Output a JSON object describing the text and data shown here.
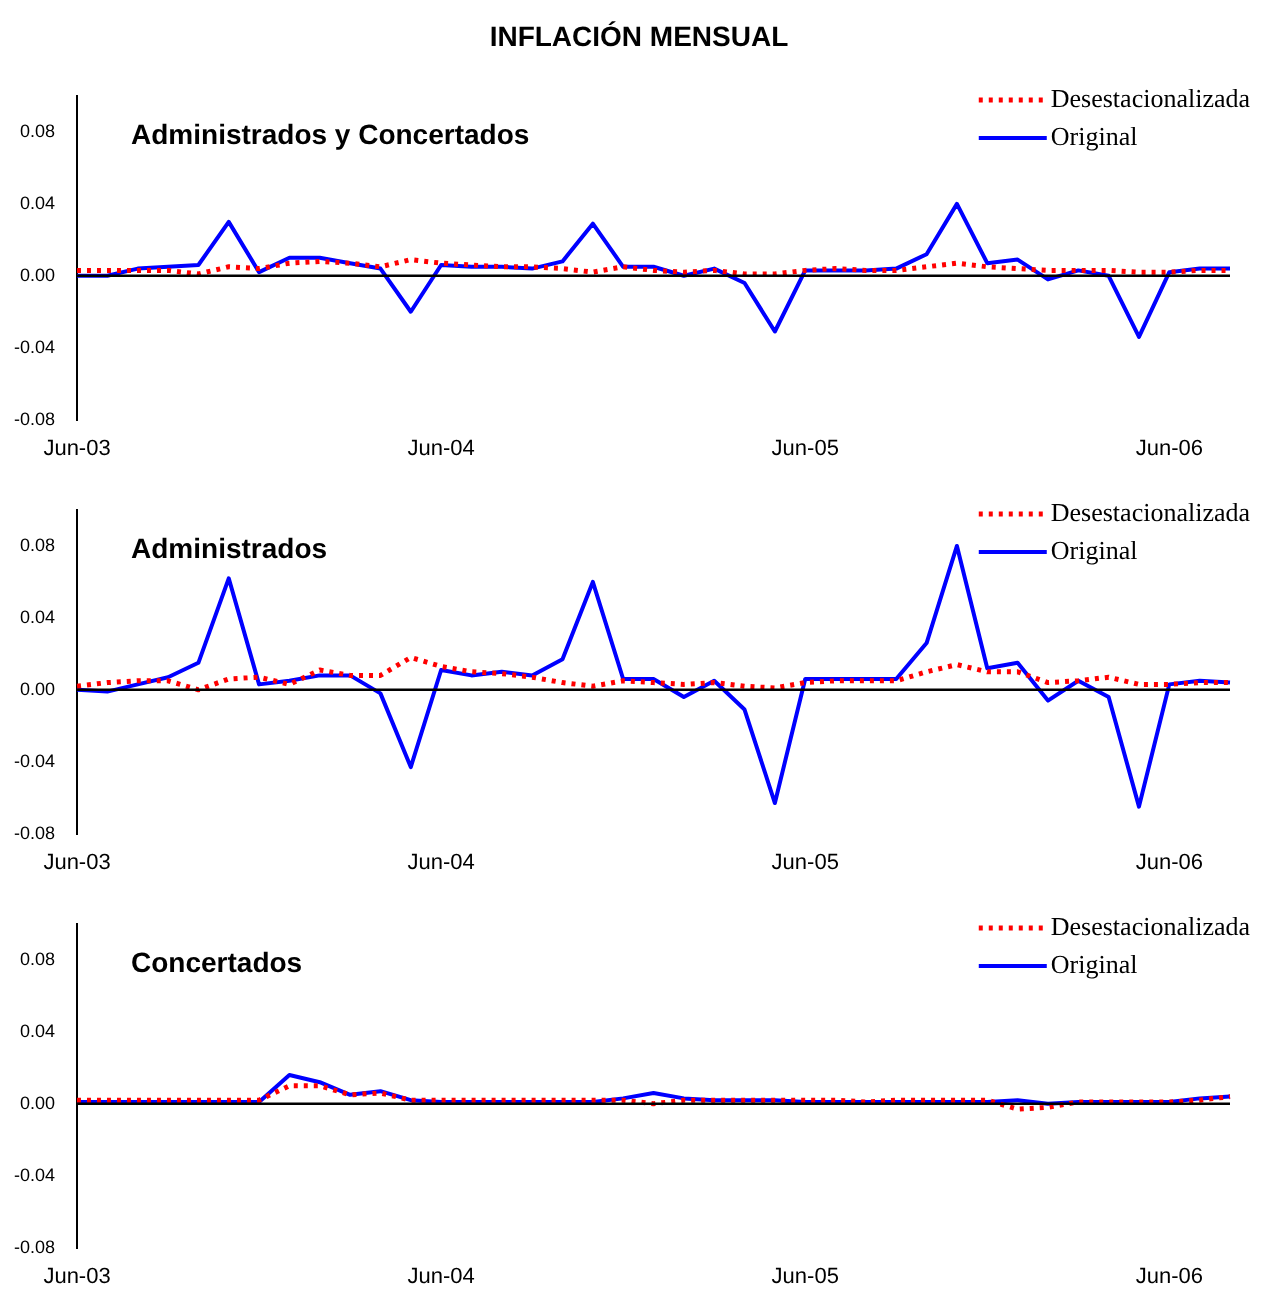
{
  "chart_data": [
    {
      "type": "line",
      "title": "Administrados y Concertados",
      "annotations": [
        "INFLACIÓN MENSUAL"
      ],
      "categories": [
        "Jun-03",
        null,
        null,
        null,
        null,
        null,
        null,
        null,
        null,
        null,
        null,
        null,
        "Jun-04",
        null,
        null,
        null,
        null,
        null,
        null,
        null,
        null,
        null,
        null,
        null,
        "Jun-05",
        null,
        null,
        null,
        null,
        null,
        null,
        null,
        null,
        null,
        null,
        null,
        "Jun-06",
        null,
        null
      ],
      "series": [
        {
          "name": "Desestacionalizada",
          "color": "#ff0000",
          "line_style": "dotted",
          "values": [
            0.003,
            0.003,
            0.003,
            0.003,
            0.001,
            0.005,
            0.004,
            0.007,
            0.008,
            0.007,
            0.005,
            0.009,
            0.007,
            0.006,
            0.005,
            0.005,
            0.004,
            0.002,
            0.005,
            0.003,
            0.002,
            0.003,
            0.001,
            0.001,
            0.003,
            0.004,
            0.003,
            0.003,
            0.005,
            0.007,
            0.005,
            0.004,
            0.003,
            0.003,
            0.003,
            0.002,
            0.002,
            0.003,
            0.003
          ]
        },
        {
          "name": "Original",
          "color": "#0000ff",
          "line_style": "solid",
          "values": [
            0.0,
            0.0,
            0.004,
            0.005,
            0.006,
            0.03,
            0.002,
            0.01,
            0.01,
            0.007,
            0.004,
            -0.02,
            0.006,
            0.005,
            0.005,
            0.004,
            0.008,
            0.029,
            0.005,
            0.005,
            0.0,
            0.004,
            -0.004,
            -0.031,
            0.003,
            0.003,
            0.003,
            0.004,
            0.012,
            0.04,
            0.007,
            0.009,
            -0.002,
            0.003,
            0.0,
            -0.034,
            0.002,
            0.004,
            0.004
          ]
        }
      ],
      "ylim": [
        -0.08,
        0.1
      ],
      "yticks": [
        {
          "value": -0.08,
          "label": "-0.08"
        },
        {
          "value": -0.04,
          "label": "-0.04"
        },
        {
          "value": 0,
          "label": "0.00"
        },
        {
          "value": 0.04,
          "label": "0.04"
        },
        {
          "value": 0.08,
          "label": "0.08"
        }
      ],
      "ref_lines": [
        {
          "axis": "y",
          "value": 0,
          "color": "#000000"
        }
      ],
      "grid": false,
      "legend": "top right",
      "marker": "none"
    },
    {
      "type": "line",
      "title": "Administrados",
      "categories": [
        "Jun-03",
        null,
        null,
        null,
        null,
        null,
        null,
        null,
        null,
        null,
        null,
        null,
        "Jun-04",
        null,
        null,
        null,
        null,
        null,
        null,
        null,
        null,
        null,
        null,
        null,
        "Jun-05",
        null,
        null,
        null,
        null,
        null,
        null,
        null,
        null,
        null,
        null,
        null,
        "Jun-06",
        null,
        null
      ],
      "series": [
        {
          "name": "Desestacionalizada",
          "color": "#ff0000",
          "line_style": "dotted",
          "values": [
            0.002,
            0.004,
            0.005,
            0.005,
            0.0,
            0.006,
            0.007,
            0.003,
            0.011,
            0.008,
            0.008,
            0.018,
            0.013,
            0.01,
            0.009,
            0.007,
            0.004,
            0.002,
            0.005,
            0.004,
            0.003,
            0.004,
            0.002,
            0.001,
            0.004,
            0.005,
            0.005,
            0.005,
            0.01,
            0.014,
            0.01,
            0.01,
            0.004,
            0.005,
            0.007,
            0.003,
            0.003,
            0.004,
            0.004
          ]
        },
        {
          "name": "Original",
          "color": "#0000ff",
          "line_style": "solid",
          "values": [
            0.0,
            -0.001,
            0.003,
            0.007,
            0.015,
            0.062,
            0.003,
            0.005,
            0.008,
            0.008,
            -0.002,
            -0.043,
            0.011,
            0.008,
            0.01,
            0.008,
            0.017,
            0.06,
            0.006,
            0.006,
            -0.004,
            0.005,
            -0.011,
            -0.063,
            0.006,
            0.006,
            0.006,
            0.006,
            0.026,
            0.08,
            0.012,
            0.015,
            -0.006,
            0.005,
            -0.004,
            -0.065,
            0.003,
            0.005,
            0.004
          ]
        }
      ],
      "ylim": [
        -0.08,
        0.1
      ],
      "yticks": [
        {
          "value": -0.08,
          "label": "-0.08"
        },
        {
          "value": -0.04,
          "label": "-0.04"
        },
        {
          "value": 0,
          "label": "0.00"
        },
        {
          "value": 0.04,
          "label": "0.04"
        },
        {
          "value": 0.08,
          "label": "0.08"
        }
      ],
      "ref_lines": [
        {
          "axis": "y",
          "value": 0,
          "color": "#000000"
        }
      ],
      "grid": false,
      "legend": "top right",
      "marker": "none"
    },
    {
      "type": "line",
      "title": "Concertados",
      "categories": [
        "Jun-03",
        null,
        null,
        null,
        null,
        null,
        null,
        null,
        null,
        null,
        null,
        null,
        "Jun-04",
        null,
        null,
        null,
        null,
        null,
        null,
        null,
        null,
        null,
        null,
        null,
        "Jun-05",
        null,
        null,
        null,
        null,
        null,
        null,
        null,
        null,
        null,
        null,
        null,
        "Jun-06",
        null,
        null
      ],
      "series": [
        {
          "name": "Desestacionalizada",
          "color": "#ff0000",
          "line_style": "dotted",
          "values": [
            0.002,
            0.002,
            0.002,
            0.002,
            0.002,
            0.002,
            0.002,
            0.01,
            0.01,
            0.005,
            0.006,
            0.002,
            0.002,
            0.002,
            0.002,
            0.002,
            0.002,
            0.002,
            0.002,
            0.0,
            0.002,
            0.002,
            0.002,
            0.002,
            0.002,
            0.002,
            0.001,
            0.002,
            0.002,
            0.002,
            0.002,
            -0.003,
            -0.002,
            0.001,
            0.001,
            0.001,
            0.001,
            0.002,
            0.004
          ]
        },
        {
          "name": "Original",
          "color": "#0000ff",
          "line_style": "solid",
          "values": [
            0.001,
            0.001,
            0.001,
            0.001,
            0.001,
            0.001,
            0.001,
            0.016,
            0.012,
            0.005,
            0.007,
            0.002,
            0.001,
            0.001,
            0.001,
            0.001,
            0.001,
            0.001,
            0.003,
            0.006,
            0.003,
            0.002,
            0.002,
            0.002,
            0.001,
            0.001,
            0.001,
            0.001,
            0.001,
            0.001,
            0.001,
            0.002,
            0.0,
            0.001,
            0.001,
            0.001,
            0.001,
            0.003,
            0.004
          ]
        }
      ],
      "ylim": [
        -0.08,
        0.1
      ],
      "yticks": [
        {
          "value": -0.08,
          "label": "-0.08"
        },
        {
          "value": -0.04,
          "label": "-0.04"
        },
        {
          "value": 0,
          "label": "0.00"
        },
        {
          "value": 0.04,
          "label": "0.04"
        },
        {
          "value": 0.08,
          "label": "0.08"
        }
      ],
      "ref_lines": [
        {
          "axis": "y",
          "value": 0,
          "color": "#000000"
        }
      ],
      "grid": false,
      "legend": "top right",
      "marker": "none"
    }
  ]
}
